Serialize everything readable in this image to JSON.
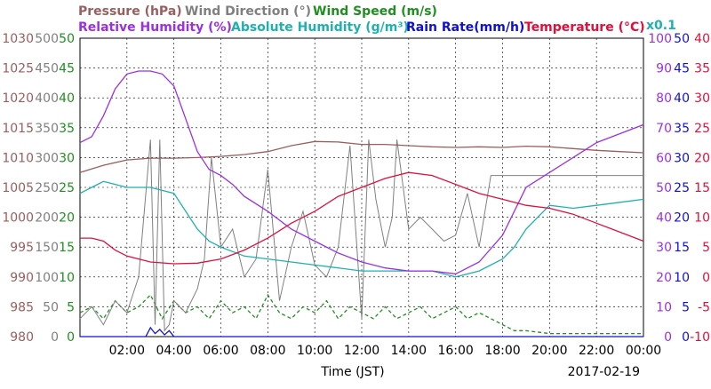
{
  "chart_data": {
    "type": "line",
    "date": "2017-02-19",
    "xlabel": "Time (JST)",
    "x_ticks": [
      "02:00",
      "04:00",
      "06:00",
      "08:00",
      "10:00",
      "12:00",
      "14:00",
      "16:00",
      "18:00",
      "20:00",
      "22:00",
      "00:00"
    ],
    "xlim_hours": [
      0,
      24
    ],
    "grid": true,
    "legend_placement": "top",
    "legend_extra": "x0.1",
    "axes": {
      "pressure": {
        "label": "Pressure (hPa)",
        "color": "#9b5e5e",
        "min": 980,
        "max": 1030,
        "ticks": [
          "980",
          "985",
          "990",
          "995",
          "1000",
          "1005",
          "1010",
          "1015",
          "1020",
          "1025",
          "1030"
        ]
      },
      "wind_dir": {
        "label": "Wind Direction (°)",
        "color": "#808080",
        "min": 0,
        "max": 500,
        "ticks": [
          "0",
          "50",
          "100",
          "150",
          "200",
          "250",
          "300",
          "350",
          "400",
          "450",
          "500"
        ]
      },
      "wind_speed": {
        "label": "Wind Speed (m/s)",
        "color": "#1f8f1f",
        "min": 0,
        "max": 50,
        "ticks": [
          "0",
          "5",
          "10",
          "15",
          "20",
          "25",
          "30",
          "35",
          "40",
          "45",
          "50"
        ]
      },
      "rh": {
        "label": "Relative Humidity (%)",
        "color": "#9b30e0",
        "min": 0,
        "max": 100,
        "ticks": [
          "0",
          "10",
          "20",
          "30",
          "40",
          "50",
          "60",
          "70",
          "80",
          "90",
          "100"
        ]
      },
      "abs_hum": {
        "label": "Absolute Humidity (g/m³)",
        "color": "#20b0b0"
      },
      "rain": {
        "label": "Rain Rate(mm/h)",
        "color": "#1010d0",
        "min": 0,
        "max": 50,
        "ticks": [
          "0",
          "5",
          "10",
          "15",
          "20",
          "25",
          "30",
          "35",
          "40",
          "45",
          "50"
        ]
      },
      "temp": {
        "label": "Temperature (°C)",
        "color": "#e0103c",
        "min": -10,
        "max": 40,
        "ticks": [
          "-10",
          "-5",
          "0",
          "5",
          "10",
          "15",
          "20",
          "25",
          "30",
          "35",
          "40"
        ]
      }
    },
    "series": [
      {
        "name": "Pressure (hPa)",
        "axis": "pressure",
        "color": "#9b5e5e",
        "x": [
          0,
          1,
          2,
          3,
          4,
          5,
          6,
          7,
          8,
          9,
          10,
          11,
          12,
          13,
          14,
          15,
          16,
          17,
          18,
          19,
          20,
          21,
          22,
          23,
          24
        ],
        "y": [
          1007.5,
          1008.7,
          1009.6,
          1009.9,
          1009.9,
          1010.0,
          1010.2,
          1010.5,
          1011.0,
          1012.0,
          1012.7,
          1012.6,
          1012.2,
          1012.2,
          1012.0,
          1011.8,
          1011.7,
          1011.8,
          1011.7,
          1011.9,
          1011.8,
          1011.5,
          1011.2,
          1011.0,
          1010.8
        ]
      },
      {
        "name": "Relative Humidity (%)",
        "axis": "rh",
        "color": "#9b30e0",
        "x": [
          0,
          0.5,
          1,
          1.5,
          2,
          2.5,
          3,
          3.5,
          4,
          4.5,
          5,
          5.5,
          6,
          6.5,
          7,
          8,
          9,
          10,
          11,
          12,
          13,
          14,
          15,
          16,
          17,
          18,
          19,
          20,
          21,
          22,
          23,
          24
        ],
        "y": [
          65,
          67,
          74,
          83,
          88,
          89,
          89,
          88,
          84,
          73,
          62,
          56,
          54,
          51,
          47,
          42,
          36,
          32,
          28,
          25,
          23,
          22,
          22,
          21,
          25,
          34,
          50,
          55,
          60,
          65,
          68,
          71
        ]
      },
      {
        "name": "Absolute Humidity (g/m³)",
        "axis": "pressure_scaled",
        "color": "#20b0b0",
        "x": [
          0,
          0.5,
          1,
          1.5,
          2,
          3,
          4,
          4.5,
          5,
          5.5,
          6,
          7,
          8,
          9,
          10,
          11,
          12,
          13,
          14,
          15,
          16,
          17,
          18,
          18.5,
          19,
          19.5,
          20,
          21,
          22,
          23,
          24
        ],
        "y": [
          1004,
          1005,
          1006,
          1005.5,
          1005,
          1005,
          1004,
          1001,
          998,
          996,
          995,
          993.5,
          993,
          992.5,
          992,
          991.5,
          991,
          991,
          991,
          991,
          990,
          991,
          993,
          995,
          998,
          1000,
          1002,
          1001.5,
          1002,
          1002.5,
          1003
        ]
      },
      {
        "name": "Temperature (°C)",
        "axis": "temp",
        "color": "#e0103c",
        "x": [
          0,
          0.5,
          1,
          1.5,
          2,
          3,
          4,
          5,
          6,
          7,
          8,
          9,
          10,
          11,
          12,
          13,
          14,
          15,
          16,
          17,
          18,
          19,
          20,
          21,
          22,
          23,
          24
        ],
        "y": [
          6.5,
          6.5,
          6,
          4.5,
          3.5,
          2.5,
          2.2,
          2.3,
          3,
          4.5,
          6.5,
          9,
          11,
          13.5,
          15,
          16.5,
          17.5,
          17,
          15.5,
          14,
          13,
          12,
          11.5,
          10.5,
          9,
          7.5,
          6
        ]
      },
      {
        "name": "Wind Direction (°)",
        "axis": "wind_dir",
        "color": "#808080",
        "x": [
          0,
          0.5,
          1,
          1.5,
          2,
          2.5,
          3,
          3.2,
          3.4,
          3.6,
          3.8,
          4,
          4.5,
          5,
          5.3,
          5.6,
          6,
          6.5,
          7,
          7.5,
          8,
          8.5,
          9,
          9.5,
          10,
          10.5,
          11,
          11.5,
          12,
          12.3,
          12.6,
          13,
          13.3,
          13.5,
          14,
          14.5,
          15,
          15.5,
          16,
          16.5,
          17,
          17.5,
          18,
          19,
          20,
          21,
          22,
          23,
          24
        ],
        "y": [
          30,
          50,
          20,
          60,
          40,
          100,
          330,
          20,
          330,
          10,
          20,
          60,
          40,
          80,
          130,
          300,
          150,
          180,
          100,
          130,
          280,
          60,
          150,
          210,
          120,
          100,
          150,
          320,
          30,
          330,
          230,
          150,
          200,
          330,
          180,
          200,
          180,
          160,
          170,
          240,
          150,
          270,
          270,
          270,
          270,
          270,
          270,
          270,
          270
        ]
      },
      {
        "name": "Wind Speed (m/s)",
        "axis": "wind_speed",
        "color": "#1f8f1f",
        "x": [
          0,
          0.5,
          1,
          1.5,
          2,
          2.5,
          3,
          3.5,
          4,
          4.5,
          5,
          5.5,
          6,
          6.5,
          7,
          7.5,
          8,
          8.5,
          9,
          9.5,
          10,
          10.5,
          11,
          11.5,
          12,
          12.5,
          13,
          13.5,
          14,
          14.5,
          15,
          15.5,
          16,
          16.5,
          17,
          17.5,
          18,
          18.5,
          19,
          20,
          21,
          22,
          23,
          24
        ],
        "y": [
          4,
          5,
          3,
          6,
          4,
          5,
          7,
          3,
          6,
          4,
          5,
          3,
          6,
          4,
          5,
          3,
          7,
          4,
          3,
          5,
          4,
          6,
          3,
          5,
          4,
          3,
          5,
          3,
          4,
          5,
          3,
          4,
          5,
          3,
          4,
          3,
          2,
          1,
          1,
          0.5,
          0.5,
          0.5,
          0.5,
          0.5
        ]
      },
      {
        "name": "Rain Rate(mm/h)",
        "axis": "rain",
        "color": "#1010d0",
        "x": [
          0,
          2.8,
          3.0,
          3.2,
          3.4,
          3.6,
          3.8,
          4.0,
          24
        ],
        "y": [
          0,
          0,
          1.5,
          0.5,
          1.2,
          0.3,
          1.0,
          0,
          0
        ]
      }
    ]
  }
}
